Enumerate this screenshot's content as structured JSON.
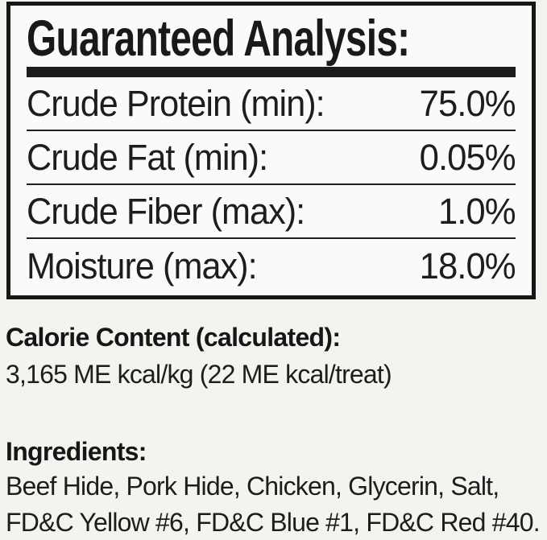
{
  "colors": {
    "page_background": "#f5f3f0",
    "panel_background": "#fbfaf8",
    "border": "#171717",
    "text": "#1c1c1c"
  },
  "guaranteed_analysis": {
    "title": "Guaranteed Analysis:",
    "rows": [
      {
        "label": "Crude Protein (min):",
        "value": "75.0%"
      },
      {
        "label": "Crude Fat (min):",
        "value": "0.05%"
      },
      {
        "label": "Crude Fiber (max):",
        "value": "1.0%"
      },
      {
        "label": "Moisture (max):",
        "value": "18.0%"
      }
    ]
  },
  "calorie_content": {
    "heading": "Calorie Content (calculated):",
    "value": "3,165 ME kcal/kg (22 ME kcal/treat)"
  },
  "ingredients": {
    "heading": "Ingredients:",
    "lines": [
      "Beef Hide, Pork Hide, Chicken, Glycerin, Salt,",
      "FD&C Yellow #6, FD&C Blue #1, FD&C Red #40."
    ]
  }
}
